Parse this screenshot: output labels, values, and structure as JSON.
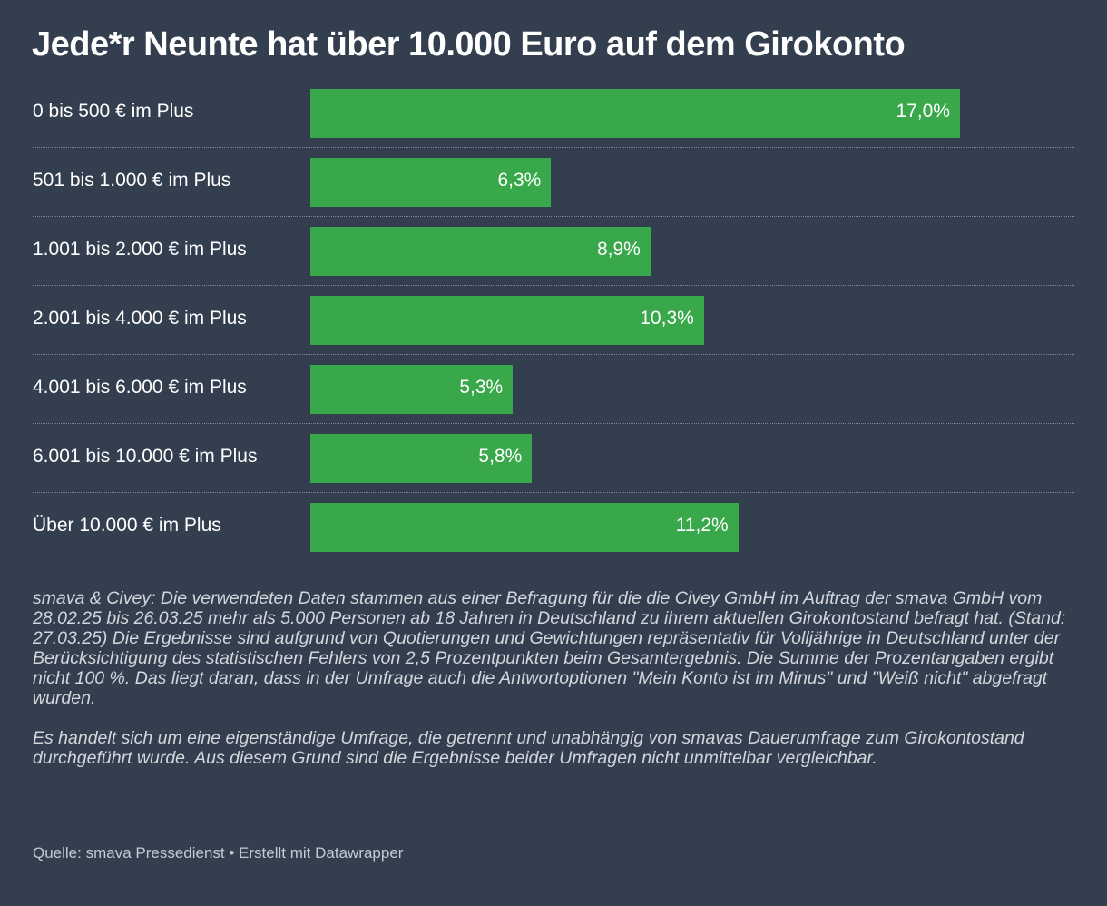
{
  "title": "Jede*r Neunte hat über 10.000 Euro auf dem Girokonto",
  "chart_data": {
    "type": "bar",
    "orientation": "horizontal",
    "categories": [
      "0 bis 500 € im Plus",
      "501 bis 1.000 € im Plus",
      "1.001 bis 2.000 € im Plus",
      "2.001 bis 4.000 € im Plus",
      "4.001 bis 6.000 € im Plus",
      "6.001 bis 10.000 € im Plus",
      "Über 10.000 € im Plus"
    ],
    "values": [
      17.0,
      6.3,
      8.9,
      10.3,
      5.3,
      5.8,
      11.2
    ],
    "value_labels": [
      "17,0%",
      "6,3%",
      "8,9%",
      "10,3%",
      "5,3%",
      "5,8%",
      "11,2%"
    ],
    "xlim": [
      0,
      17.0
    ],
    "bar_color": "#38a84a",
    "grid": false
  },
  "notes": [
    "smava & Civey: Die verwendeten Daten stammen aus einer Befragung für die die Civey GmbH im Auftrag der smava GmbH vom 28.02.25 bis 26.03.25 mehr als 5.000 Personen ab 18 Jahren in Deutschland zu ihrem aktuellen Girokontostand befragt hat. (Stand: 27.03.25) Die Ergebnisse sind aufgrund von Quotierungen und Gewichtungen repräsentativ für Volljährige in Deutschland unter der Berücksichtigung des statistischen Fehlers von 2,5 Prozentpunkten beim Gesamtergebnis. Die Summe der Prozentangaben ergibt nicht 100 %. Das liegt daran, dass in der Umfrage auch die Antwortoptionen \"Mein Konto ist im Minus\" und \"Weiß nicht\" abgefragt wurden.",
    "Es handelt sich um eine eigenständige Umfrage, die getrennt und unabhängig von smavas Dauerumfrage zum Girokontostand durchgeführt wurde. Aus diesem Grund sind die Ergebnisse beider Umfragen nicht unmittelbar vergleichbar."
  ],
  "source": "Quelle: smava Pressedienst • Erstellt mit Datawrapper",
  "colors": {
    "background": "#333e4f",
    "bar": "#38a84a",
    "text": "#ffffff",
    "notes": "#d3d6db"
  }
}
